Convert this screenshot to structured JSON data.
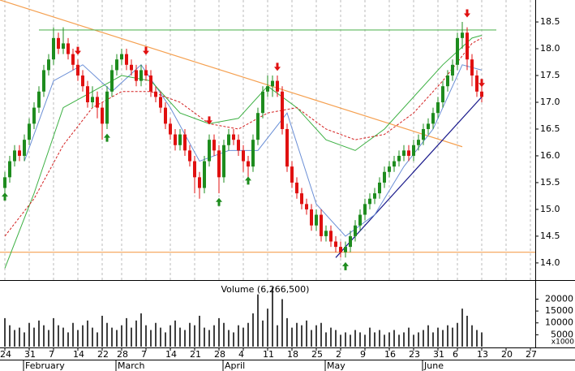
{
  "chart_data": [
    {
      "type": "candlestick",
      "xlim": [
        -1,
        109
      ],
      "ylim": [
        13.68,
        18.91
      ],
      "yticks": [
        {
          "value": 14,
          "label": "14.0"
        },
        14.5,
        {
          "value": 15,
          "label": "15.0"
        },
        15.5,
        {
          "value": 16,
          "label": "16.0"
        },
        16.5,
        {
          "value": 17,
          "label": "17.0"
        },
        17.5,
        {
          "value": 18,
          "label": "18.0"
        },
        18.5
      ],
      "up_color": "#1e8c1e",
      "down_color": "#e01010",
      "ohlc": [
        [
          15.4,
          15.7,
          15.3,
          15.6
        ],
        [
          15.6,
          16.0,
          15.5,
          15.9
        ],
        [
          15.9,
          16.2,
          15.8,
          16.1
        ],
        [
          16.1,
          16.2,
          15.9,
          16.0
        ],
        [
          16.0,
          16.4,
          15.9,
          16.3
        ],
        [
          16.3,
          16.7,
          16.2,
          16.6
        ],
        [
          16.6,
          17.0,
          16.5,
          16.9
        ],
        [
          16.9,
          17.3,
          16.8,
          17.2
        ],
        [
          17.2,
          17.7,
          17.1,
          17.6
        ],
        [
          17.6,
          17.9,
          17.5,
          17.8
        ],
        [
          17.8,
          18.4,
          17.7,
          18.2
        ],
        [
          18.2,
          18.3,
          17.9,
          18.0
        ],
        [
          18.0,
          18.4,
          17.9,
          18.1
        ],
        [
          18.1,
          18.2,
          17.8,
          17.9
        ],
        [
          17.9,
          18.0,
          17.6,
          17.7
        ],
        [
          17.7,
          17.8,
          17.4,
          17.5
        ],
        [
          17.5,
          17.6,
          17.2,
          17.3
        ],
        [
          17.3,
          17.4,
          16.9,
          17.0
        ],
        [
          17.0,
          17.3,
          16.9,
          17.1
        ],
        [
          17.1,
          17.2,
          16.7,
          16.9
        ],
        [
          16.9,
          17.0,
          16.3,
          16.6
        ],
        [
          16.6,
          17.3,
          16.5,
          17.2
        ],
        [
          17.2,
          17.7,
          17.1,
          17.6
        ],
        [
          17.6,
          17.9,
          17.5,
          17.8
        ],
        [
          17.8,
          18.0,
          17.7,
          17.9
        ],
        [
          17.9,
          18.0,
          17.6,
          17.7
        ],
        [
          17.7,
          17.8,
          17.5,
          17.6
        ],
        [
          17.6,
          17.7,
          17.3,
          17.4
        ],
        [
          17.4,
          17.7,
          17.3,
          17.6
        ],
        [
          17.6,
          17.7,
          17.4,
          17.5
        ],
        [
          17.5,
          17.6,
          17.1,
          17.2
        ],
        [
          17.2,
          17.3,
          17.0,
          17.1
        ],
        [
          17.1,
          17.2,
          16.8,
          16.9
        ],
        [
          16.9,
          17.0,
          16.5,
          16.6
        ],
        [
          16.6,
          16.7,
          16.3,
          16.4
        ],
        [
          16.4,
          16.5,
          16.1,
          16.2
        ],
        [
          16.2,
          16.5,
          16.1,
          16.4
        ],
        [
          16.4,
          16.5,
          16.0,
          16.1
        ],
        [
          16.1,
          16.2,
          15.8,
          15.9
        ],
        [
          15.9,
          16.0,
          15.3,
          15.6
        ],
        [
          15.6,
          15.7,
          15.2,
          15.4
        ],
        [
          15.4,
          16.0,
          15.3,
          15.9
        ],
        [
          15.9,
          16.4,
          15.8,
          16.3
        ],
        [
          16.3,
          16.4,
          16.0,
          16.1
        ],
        [
          16.1,
          16.2,
          15.3,
          15.6
        ],
        [
          15.6,
          16.3,
          15.5,
          16.2
        ],
        [
          16.2,
          16.5,
          16.1,
          16.4
        ],
        [
          16.4,
          16.5,
          16.2,
          16.3
        ],
        [
          16.3,
          16.4,
          16.0,
          16.1
        ],
        [
          16.1,
          16.2,
          15.7,
          15.9
        ],
        [
          15.9,
          16.0,
          15.6,
          15.8
        ],
        [
          15.8,
          16.4,
          15.7,
          16.3
        ],
        [
          16.3,
          16.9,
          16.2,
          16.8
        ],
        [
          16.8,
          17.3,
          16.7,
          17.2
        ],
        [
          17.2,
          17.5,
          17.1,
          17.3
        ],
        [
          17.3,
          17.5,
          17.1,
          17.4
        ],
        [
          17.4,
          17.5,
          17.1,
          17.2
        ],
        [
          17.2,
          17.3,
          16.4,
          16.5
        ],
        [
          16.5,
          16.6,
          15.7,
          15.8
        ],
        [
          15.8,
          15.9,
          15.4,
          15.5
        ],
        [
          15.5,
          15.6,
          15.2,
          15.3
        ],
        [
          15.3,
          15.4,
          15.0,
          15.1
        ],
        [
          15.1,
          15.2,
          14.9,
          15.0
        ],
        [
          15.0,
          15.1,
          14.6,
          14.7
        ],
        [
          14.7,
          15.0,
          14.6,
          14.9
        ],
        [
          14.9,
          15.0,
          14.4,
          14.5
        ],
        [
          14.5,
          14.7,
          14.4,
          14.6
        ],
        [
          14.6,
          14.7,
          14.3,
          14.4
        ],
        [
          14.4,
          14.5,
          14.2,
          14.3
        ],
        [
          14.3,
          14.4,
          14.1,
          14.2
        ],
        [
          14.2,
          14.4,
          14.1,
          14.3
        ],
        [
          14.3,
          14.6,
          14.2,
          14.5
        ],
        [
          14.5,
          14.8,
          14.4,
          14.7
        ],
        [
          14.7,
          15.0,
          14.6,
          14.9
        ],
        [
          14.9,
          15.2,
          14.8,
          15.1
        ],
        [
          15.1,
          15.3,
          15.0,
          15.2
        ],
        [
          15.2,
          15.4,
          15.1,
          15.3
        ],
        [
          15.3,
          15.6,
          15.2,
          15.5
        ],
        [
          15.5,
          15.8,
          15.4,
          15.7
        ],
        [
          15.7,
          15.9,
          15.6,
          15.8
        ],
        [
          15.8,
          16.0,
          15.7,
          15.9
        ],
        [
          15.9,
          16.1,
          15.8,
          16.0
        ],
        [
          16.0,
          16.2,
          15.9,
          16.1
        ],
        [
          16.1,
          16.2,
          15.9,
          16.0
        ],
        [
          16.0,
          16.3,
          15.9,
          16.2
        ],
        [
          16.2,
          16.4,
          16.1,
          16.3
        ],
        [
          16.3,
          16.6,
          16.2,
          16.5
        ],
        [
          16.5,
          16.7,
          16.4,
          16.6
        ],
        [
          16.6,
          16.9,
          16.5,
          16.8
        ],
        [
          16.8,
          17.1,
          16.7,
          17.0
        ],
        [
          17.0,
          17.4,
          16.9,
          17.3
        ],
        [
          17.3,
          17.6,
          17.2,
          17.5
        ],
        [
          17.5,
          17.8,
          17.4,
          17.7
        ],
        [
          17.7,
          18.3,
          17.6,
          18.2
        ],
        [
          18.2,
          18.5,
          18.0,
          18.3
        ],
        [
          18.3,
          18.4,
          17.6,
          17.8
        ],
        [
          17.8,
          17.9,
          17.3,
          17.5
        ],
        [
          17.5,
          17.6,
          17.1,
          17.2
        ],
        [
          17.2,
          17.3,
          17.0,
          17.1
        ]
      ],
      "lines": [
        {
          "color": "#6b8fd6",
          "dash": false,
          "x": [
            4,
            10,
            16,
            22,
            28,
            34,
            40,
            46,
            52,
            58,
            64,
            70,
            76,
            82,
            88,
            94,
            98
          ],
          "values": [
            15.9,
            17.4,
            17.7,
            17.2,
            17.7,
            16.9,
            15.9,
            16.1,
            16.1,
            16.8,
            15.1,
            14.5,
            14.9,
            15.8,
            16.5,
            17.7,
            17.6
          ]
        },
        {
          "color": "#3cb043",
          "dash": false,
          "x": [
            0,
            6,
            12,
            18,
            24,
            30,
            36,
            42,
            48,
            54,
            60,
            66,
            72,
            78,
            84,
            90,
            96,
            98
          ],
          "values": [
            13.9,
            15.3,
            16.9,
            17.2,
            17.5,
            17.4,
            16.8,
            16.6,
            16.7,
            17.3,
            16.9,
            16.3,
            16.1,
            16.5,
            17.1,
            17.7,
            18.2,
            18.25
          ]
        },
        {
          "color": "#d42020",
          "dash": true,
          "x": [
            0,
            6,
            12,
            18,
            24,
            30,
            36,
            42,
            48,
            54,
            60,
            66,
            72,
            78,
            84,
            90,
            96,
            98
          ],
          "values": [
            14.5,
            15.2,
            16.2,
            16.9,
            17.2,
            17.2,
            17.0,
            16.6,
            16.5,
            16.8,
            16.9,
            16.5,
            16.3,
            16.4,
            16.8,
            17.4,
            18.1,
            18.2
          ]
        }
      ],
      "trend_lines": [
        {
          "color": "#f5a050",
          "x": [
            -1,
            94
          ],
          "values": [
            18.91,
            16.17
          ]
        },
        {
          "color": "#5cb85c",
          "x": [
            7,
            101
          ],
          "values": [
            18.35,
            18.35
          ]
        },
        {
          "color": "#f5a050",
          "x": [
            -1,
            109
          ],
          "values": [
            14.2,
            14.2
          ]
        },
        {
          "color": "#1a1a8c",
          "x": [
            68,
            98
          ],
          "values": [
            14.1,
            17.1
          ]
        }
      ],
      "sell_x": [
        15,
        29,
        42,
        56,
        95,
        98
      ],
      "sell_y": [
        17.9,
        17.9,
        16.6,
        17.6,
        18.6,
        17.3
      ],
      "buy_x": [
        0,
        21,
        44,
        50,
        70
      ],
      "buy_y": [
        15.3,
        16.4,
        15.2,
        15.6,
        14.0
      ]
    },
    {
      "type": "bar",
      "title": "Volume (6,266,500)",
      "unit": "x1000",
      "color": "#000000",
      "xlim": [
        -1,
        109
      ],
      "ylim": [
        0,
        27000
      ],
      "yticks": [
        5000,
        10000,
        15000,
        20000
      ],
      "values": [
        12000,
        9000,
        7000,
        8000,
        6000,
        10000,
        8000,
        11000,
        9000,
        7000,
        12000,
        9000,
        8000,
        6000,
        10000,
        7000,
        9000,
        11000,
        8000,
        6000,
        13000,
        10000,
        8000,
        7000,
        9000,
        12000,
        8000,
        11000,
        14000,
        9000,
        7000,
        10000,
        8000,
        6000,
        9000,
        11000,
        8000,
        7000,
        10000,
        9000,
        13000,
        8000,
        7000,
        9000,
        12000,
        10000,
        7000,
        6000,
        9000,
        8000,
        10000,
        14000,
        22000,
        11000,
        16000,
        25000,
        9000,
        20000,
        12000,
        8000,
        10000,
        9000,
        11000,
        7000,
        9000,
        10000,
        6000,
        8000,
        7000,
        5000,
        6000,
        5000,
        7000,
        6000,
        5000,
        8000,
        6000,
        7000,
        5000,
        6000,
        7000,
        5000,
        6000,
        8000,
        5000,
        6000,
        7000,
        9000,
        6000,
        8000,
        7000,
        9000,
        8000,
        10000,
        16000,
        13000,
        9000,
        7000,
        6000
      ],
      "xticks": [
        {
          "value": 0,
          "label": "24"
        },
        {
          "value": 5,
          "label": "31"
        },
        {
          "value": 10,
          "label": "7"
        },
        {
          "value": 15,
          "label": "14"
        },
        {
          "value": 20,
          "label": "22"
        },
        {
          "value": 24,
          "label": "28"
        },
        {
          "value": 29,
          "label": "7"
        },
        {
          "value": 34,
          "label": "14"
        },
        {
          "value": 39,
          "label": "21"
        },
        {
          "value": 44,
          "label": "28"
        },
        {
          "value": 49,
          "label": "4"
        },
        {
          "value": 54,
          "label": "11"
        },
        {
          "value": 59,
          "label": "18"
        },
        {
          "value": 64,
          "label": "25"
        },
        {
          "value": 69,
          "label": "2"
        },
        {
          "value": 74,
          "label": "9"
        },
        {
          "value": 79,
          "label": "16"
        },
        {
          "value": 84,
          "label": "23"
        },
        {
          "value": 89,
          "label": "31"
        },
        {
          "value": 93,
          "label": "6"
        },
        {
          "value": 98,
          "label": "13"
        },
        {
          "value": 103,
          "label": "20"
        },
        {
          "value": 108,
          "label": "27"
        }
      ],
      "month_ticks": [
        {
          "value": 5,
          "label": "February"
        },
        {
          "value": 24,
          "label": "March"
        },
        {
          "value": 46,
          "label": "April"
        },
        {
          "value": 67,
          "label": "May"
        },
        {
          "value": 87,
          "label": "June"
        }
      ]
    }
  ]
}
